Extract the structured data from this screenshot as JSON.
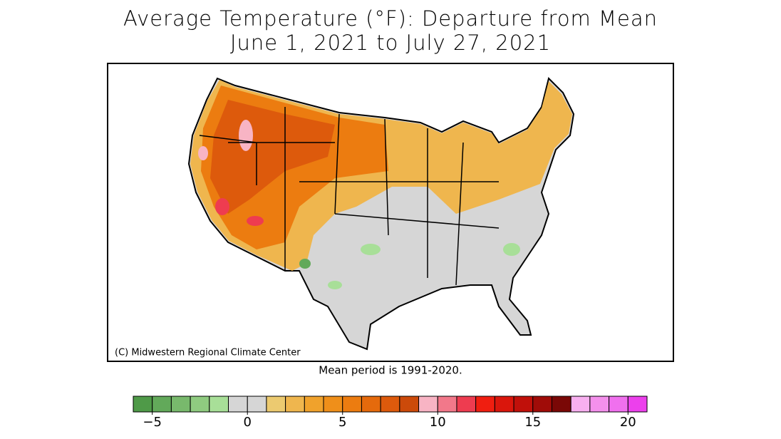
{
  "title": [
    "Average Temperature (°F): Departure from Mean",
    "June 1, 2021 to July 27, 2021"
  ],
  "credit": "(C) Midwestern Regional Climate Center",
  "note": "Mean period is 1991-2020.",
  "colorbar": {
    "bounds": [
      -6,
      21
    ],
    "ticks": [
      {
        "value": -5,
        "label": "−5"
      },
      0,
      5,
      10,
      15,
      20
    ],
    "colors": [
      "#4f9a48",
      "#62a95a",
      "#78b96c",
      "#8fcb80",
      "#a8df98",
      "#d6d6d6",
      "#d6d6d6",
      "#ecca70",
      "#efb64e",
      "#f0a22c",
      "#ef8f1a",
      "#ec7c10",
      "#e56a0c",
      "#dd5a0c",
      "#cc4a0a",
      "#f8b4c4",
      "#f2788a",
      "#ee3c50",
      "#f01e10",
      "#da160c",
      "#c0100a",
      "#a00c08",
      "#7a0806",
      "#f8b0f0",
      "#f490ec",
      "#f070ee",
      "#ec40ec"
    ]
  }
}
